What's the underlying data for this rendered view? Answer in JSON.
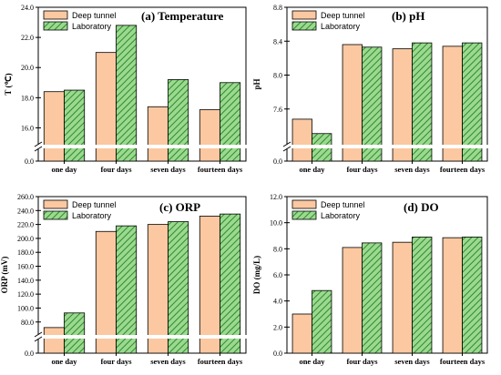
{
  "colors": {
    "deep_tunnel": "#fbc8a1",
    "laboratory_fill": "#9bd98f",
    "laboratory_hatch": "#2f8a2f",
    "axis": "#000000"
  },
  "chart_data": [
    {
      "type": "bar",
      "title": "(a) Temperature",
      "ylabel": "T (℃)",
      "categories": [
        "one day",
        "four days",
        "seven days",
        "fourteen days"
      ],
      "series": [
        {
          "name": "Deep tunnel",
          "values": [
            18.4,
            21.0,
            17.4,
            17.2
          ]
        },
        {
          "name": "Laboratory",
          "values": [
            18.5,
            22.8,
            19.2,
            19.0
          ]
        }
      ],
      "yticks": [
        "24.0",
        "22.0",
        "20.0",
        "18.0",
        "16.0",
        "0.0"
      ],
      "axis_break": true,
      "ylim_upper": [
        15.0,
        24.0
      ],
      "ylim_lower": [
        0.0,
        1.0
      ],
      "legend": "top-left"
    },
    {
      "type": "bar",
      "title": "(b) pH",
      "ylabel": "pH",
      "categories": [
        "one day",
        "four days",
        "seven days",
        "fourteen days"
      ],
      "series": [
        {
          "name": "Deep tunnel",
          "values": [
            7.48,
            8.36,
            8.31,
            8.34
          ]
        },
        {
          "name": "Laboratory",
          "values": [
            7.31,
            8.33,
            8.38,
            8.38
          ]
        }
      ],
      "yticks": [
        "8.8",
        "8.4",
        "8.0",
        "7.6",
        "0.0"
      ],
      "axis_break": true,
      "ylim_upper": [
        7.2,
        8.8
      ],
      "ylim_lower": [
        0.0,
        1.0
      ],
      "legend": "top-left"
    },
    {
      "type": "bar",
      "title": "(c) ORP",
      "ylabel": "ORP (mV)",
      "categories": [
        "one day",
        "four days",
        "seven days",
        "fourteen days"
      ],
      "series": [
        {
          "name": "Deep tunnel",
          "values": [
            72,
            210,
            220,
            232
          ]
        },
        {
          "name": "Laboratory",
          "values": [
            93,
            218,
            224,
            235
          ]
        }
      ],
      "yticks": [
        "260.0",
        "240.0",
        "220.0",
        "200.0",
        "180.0",
        "160.0",
        "140.0",
        "120.0",
        "100.0",
        "80.0",
        "0.0"
      ],
      "axis_break": true,
      "ylim_upper": [
        64.0,
        260.0
      ],
      "ylim_lower": [
        0.0,
        1.0
      ],
      "legend": "top-left"
    },
    {
      "type": "bar",
      "title": "(d) DO",
      "ylabel": "DO (mg/L)",
      "categories": [
        "one day",
        "four days",
        "seven days",
        "fourteen days"
      ],
      "series": [
        {
          "name": "Deep tunnel",
          "values": [
            3.0,
            8.1,
            8.5,
            8.85
          ]
        },
        {
          "name": "Laboratory",
          "values": [
            4.8,
            8.45,
            8.9,
            8.9
          ]
        }
      ],
      "yticks": [
        "12.0",
        "10.0",
        "8.0",
        "6.0",
        "4.0",
        "2.0",
        "0.0"
      ],
      "axis_break": false,
      "ylim": [
        0.0,
        12.0
      ],
      "legend": "top-left"
    }
  ]
}
